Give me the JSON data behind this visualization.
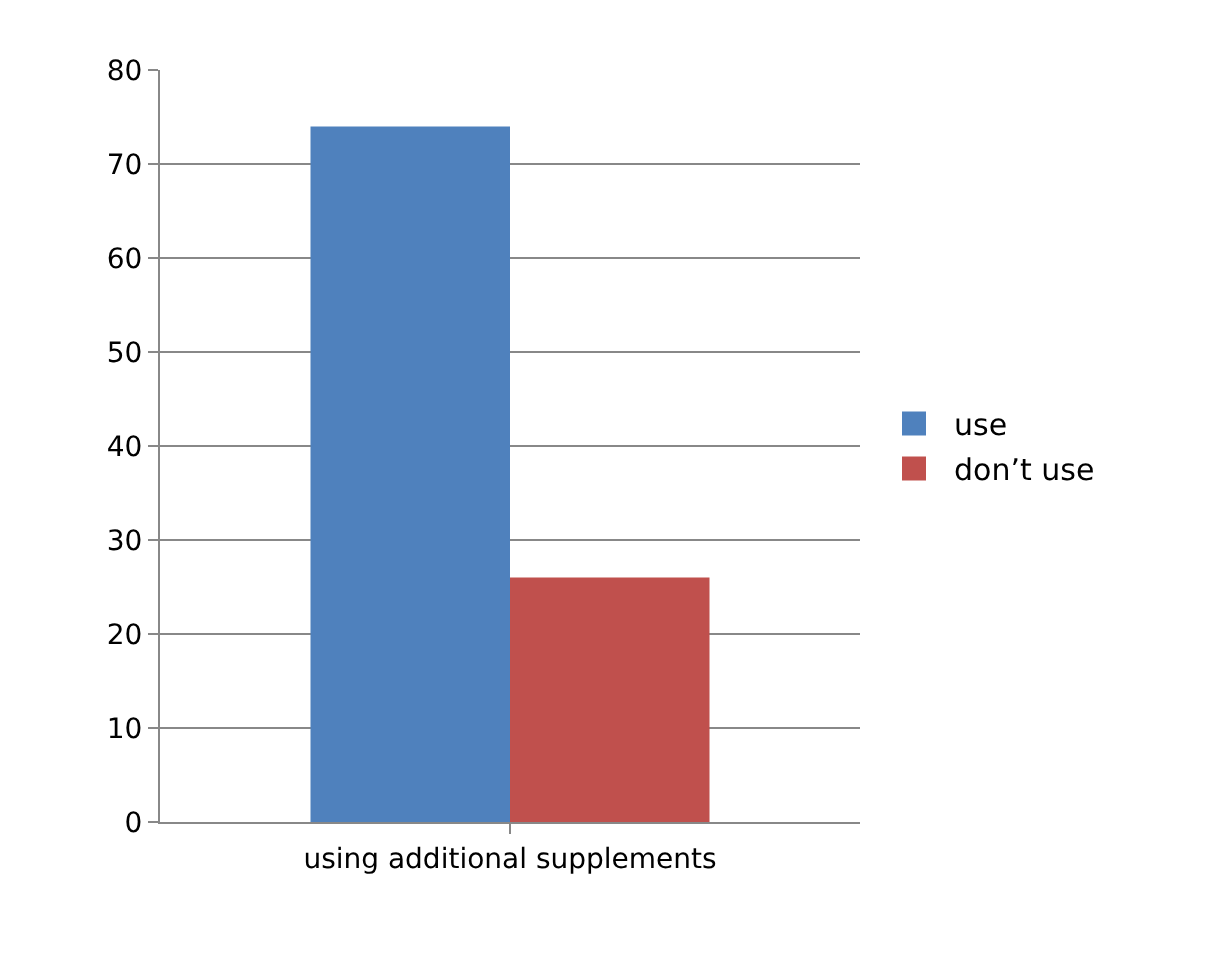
{
  "chart_data": {
    "type": "bar",
    "categories": [
      "using additional supplements"
    ],
    "series": [
      {
        "name": "use",
        "color": "#4f81bd",
        "values": [
          74
        ]
      },
      {
        "name": "don’t use",
        "color": "#c0504d",
        "values": [
          26
        ]
      }
    ],
    "ylim": [
      0,
      80
    ],
    "yticks": [
      0,
      10,
      20,
      30,
      40,
      50,
      60,
      70,
      80
    ],
    "grid": "y",
    "legend": "right"
  }
}
